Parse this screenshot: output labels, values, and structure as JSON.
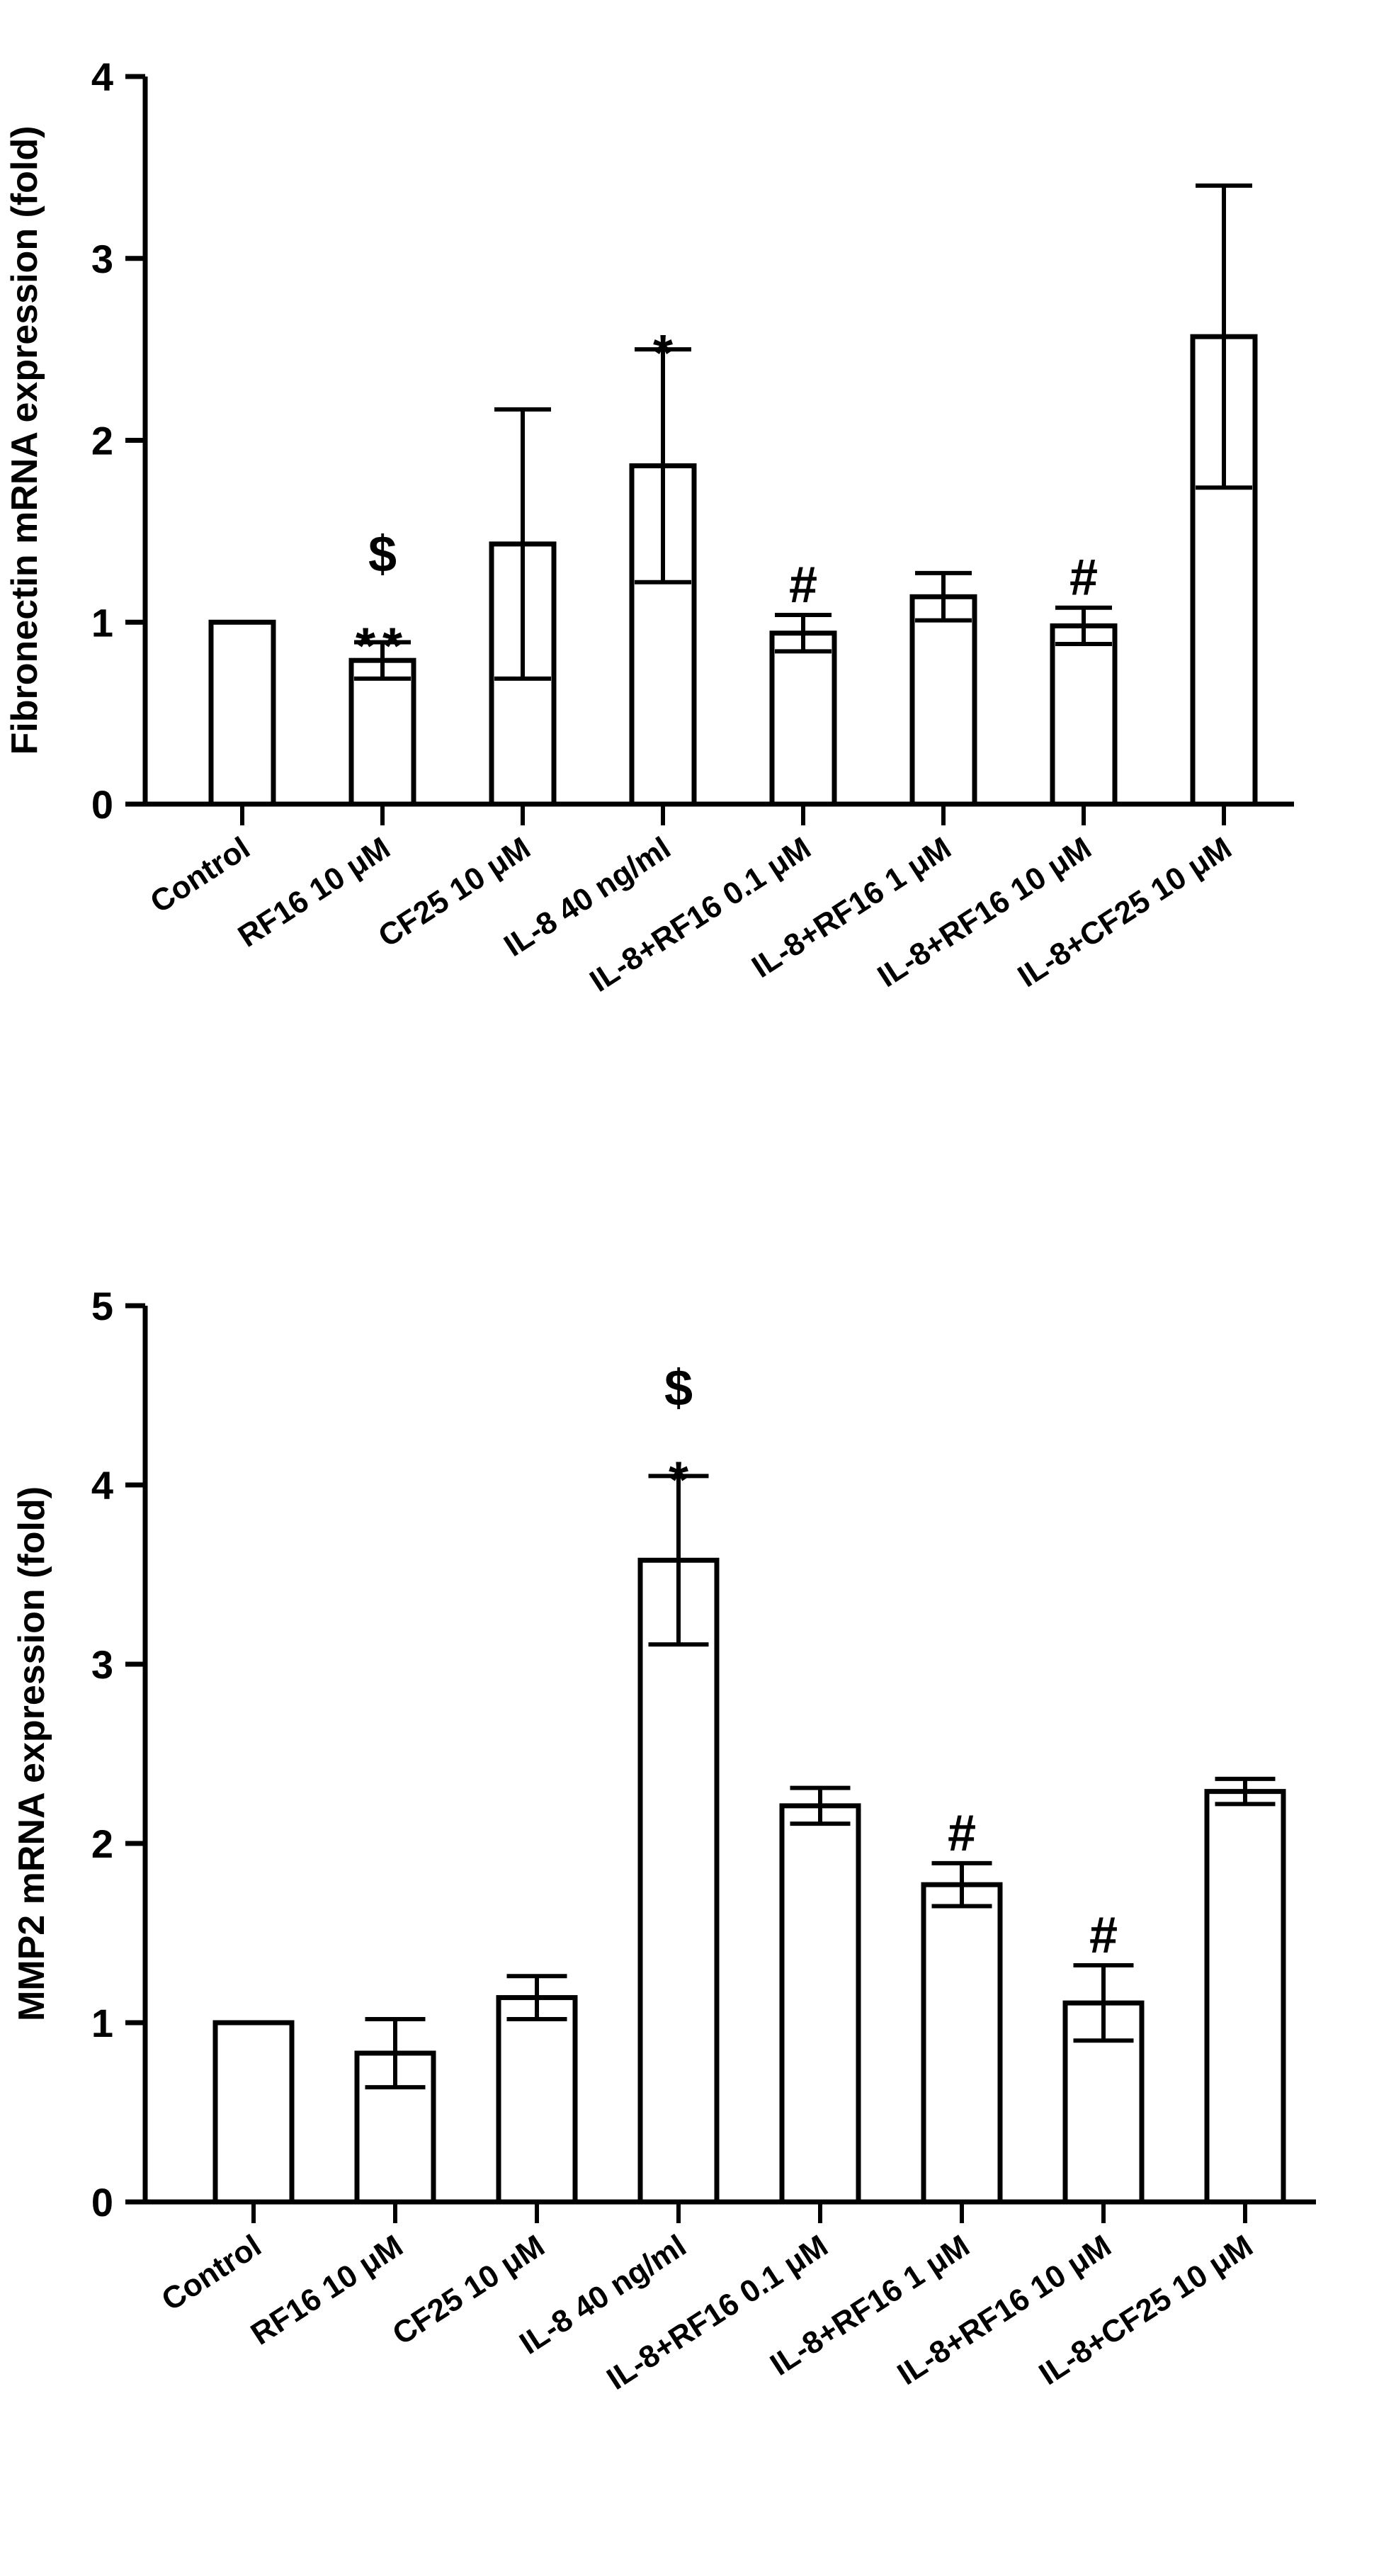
{
  "chart_data": [
    {
      "type": "bar",
      "ylabel": "Fibronectin mRNA expression (fold)",
      "xlabel": "",
      "ylim": [
        0,
        4
      ],
      "yticks": [
        0,
        1,
        2,
        3,
        4
      ],
      "categories": [
        "Control",
        "RF16 10 μM",
        "CF25 10 μM",
        "IL-8 40 ng/ml",
        "IL-8+RF16 0.1 μM",
        "IL-8+RF16 1 μM",
        "IL-8+RF16 10 μM",
        "IL-8+CF25 10 μM"
      ],
      "values": [
        1.0,
        0.79,
        1.43,
        1.86,
        0.94,
        1.14,
        0.98,
        2.57
      ],
      "errors": [
        0,
        0.1,
        0.74,
        0.64,
        0.1,
        0.13,
        0.1,
        0.83
      ],
      "annotations": [
        {
          "category_index": 1,
          "lines": [
            "$",
            "**"
          ]
        },
        {
          "category_index": 3,
          "lines": [
            "*"
          ]
        },
        {
          "category_index": 4,
          "lines": [
            "#"
          ]
        },
        {
          "category_index": 6,
          "lines": [
            "#"
          ]
        }
      ]
    },
    {
      "type": "bar",
      "ylabel": "MMP2 mRNA expression (fold)",
      "xlabel": "",
      "ylim": [
        0,
        5
      ],
      "yticks": [
        0,
        1,
        2,
        3,
        4,
        5
      ],
      "categories": [
        "Control",
        "RF16 10 μM",
        "CF25 10 μM",
        "IL-8 40 ng/ml",
        "IL-8+RF16 0.1 μM",
        "IL-8+RF16 1 μM",
        "IL-8+RF16 10 μM",
        "IL-8+CF25 10 μM"
      ],
      "values": [
        1.0,
        0.83,
        1.14,
        3.58,
        2.21,
        1.77,
        1.11,
        2.29
      ],
      "errors": [
        0,
        0.19,
        0.12,
        0.47,
        0.1,
        0.12,
        0.21,
        0.07
      ],
      "annotations": [
        {
          "category_index": 3,
          "lines": [
            "$",
            "*"
          ]
        },
        {
          "category_index": 5,
          "lines": [
            "#"
          ]
        },
        {
          "category_index": 6,
          "lines": [
            "#"
          ]
        }
      ]
    }
  ]
}
